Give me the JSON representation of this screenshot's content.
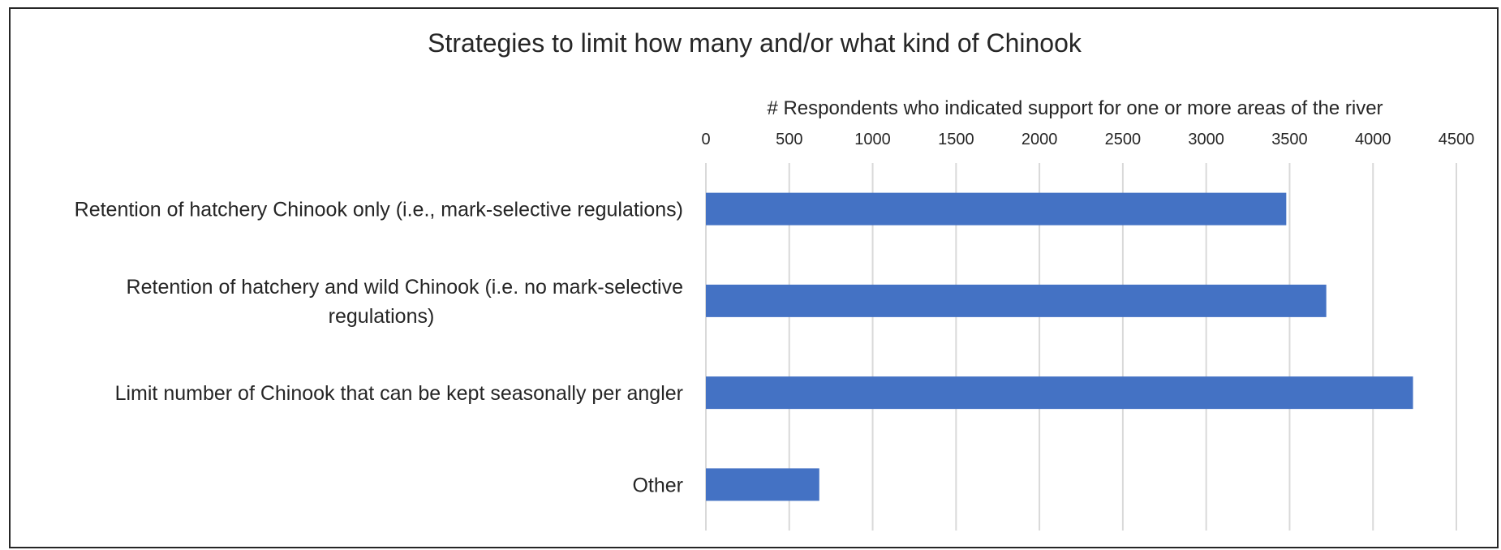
{
  "chart_data": {
    "type": "bar",
    "orientation": "horizontal",
    "title": "Strategies to limit how many and/or what kind of Chinook",
    "xlabel": "# Respondents who indicated support for one or more areas of the river",
    "ylabel": "",
    "xlim": [
      0,
      4500
    ],
    "x_ticks": [
      0,
      500,
      1000,
      1500,
      2000,
      2500,
      3000,
      3500,
      4000,
      4500
    ],
    "x_axis_position": "top",
    "grid": true,
    "legend": "none",
    "bar_color": "#4472C4",
    "categories": [
      [
        "Retention of hatchery Chinook only (i.e., mark-selective regulations)"
      ],
      [
        "Retention of hatchery and wild Chinook (i.e. no mark-selective",
        "regulations)"
      ],
      [
        "Limit number of Chinook that can be kept seasonally per angler"
      ],
      [
        "Other"
      ]
    ],
    "values": [
      3480,
      3720,
      4240,
      680
    ]
  }
}
